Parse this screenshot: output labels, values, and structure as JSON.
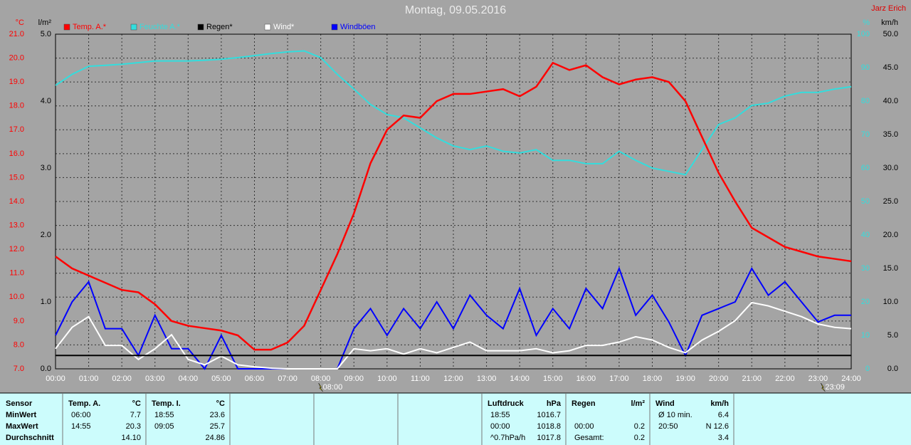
{
  "chart_data": {
    "type": "line",
    "title": "Montag, 09.05.2016",
    "author": "Jarz Erich",
    "x": [
      0,
      0.5,
      1,
      1.5,
      2,
      2.5,
      3,
      3.5,
      4,
      4.5,
      5,
      5.5,
      6,
      6.5,
      7,
      7.5,
      8,
      8.5,
      9,
      9.5,
      10,
      10.5,
      11,
      11.5,
      12,
      12.5,
      13,
      13.5,
      14,
      14.5,
      15,
      15.5,
      16,
      16.5,
      17,
      17.5,
      18,
      18.5,
      19,
      19.5,
      20,
      20.5,
      21,
      21.5,
      22,
      22.5,
      23,
      23.5,
      24
    ],
    "xlim": [
      0,
      24
    ],
    "xticks": [
      {
        "value": 0,
        "label": "00:00"
      },
      {
        "value": 1,
        "label": "01:00"
      },
      {
        "value": 2,
        "label": "02:00"
      },
      {
        "value": 3,
        "label": "03:00"
      },
      {
        "value": 4,
        "label": "04:00"
      },
      {
        "value": 5,
        "label": "05:00"
      },
      {
        "value": 6,
        "label": "06:00"
      },
      {
        "value": 7,
        "label": "07:00"
      },
      {
        "value": 8,
        "label": "08:00"
      },
      {
        "value": 9,
        "label": "09:00"
      },
      {
        "value": 10,
        "label": "10:00"
      },
      {
        "value": 11,
        "label": "11:00"
      },
      {
        "value": 12,
        "label": "12:00"
      },
      {
        "value": 13,
        "label": "13:00"
      },
      {
        "value": 14,
        "label": "14:00"
      },
      {
        "value": 15,
        "label": "15:00"
      },
      {
        "value": 16,
        "label": "16:00"
      },
      {
        "value": 17,
        "label": "17:00"
      },
      {
        "value": 18,
        "label": "18:00"
      },
      {
        "value": 19,
        "label": "19:00"
      },
      {
        "value": 20,
        "label": "20:00"
      },
      {
        "value": 21,
        "label": "21:00"
      },
      {
        "value": 22,
        "label": "22:00"
      },
      {
        "value": 23,
        "label": "23:00"
      },
      {
        "value": 24,
        "label": "24:00"
      }
    ],
    "ylabel": "°C",
    "ylim": [
      7,
      21
    ],
    "yticks": [
      {
        "value": 7,
        "label": "7.0"
      },
      {
        "value": 8,
        "label": "8.0"
      },
      {
        "value": 9,
        "label": "9.0"
      },
      {
        "value": 10,
        "label": "10.0"
      },
      {
        "value": 11,
        "label": "11.0"
      },
      {
        "value": 12,
        "label": "12.0"
      },
      {
        "value": 13,
        "label": "13.0"
      },
      {
        "value": 14,
        "label": "14.0"
      },
      {
        "value": 15,
        "label": "15.0"
      },
      {
        "value": 16,
        "label": "16.0"
      },
      {
        "value": 17,
        "label": "17.0"
      },
      {
        "value": 18,
        "label": "18.0"
      },
      {
        "value": 19,
        "label": "19.0"
      },
      {
        "value": 20,
        "label": "20.0"
      },
      {
        "value": 21,
        "label": "21.0"
      }
    ],
    "y3label": "l/m²",
    "y3lim": [
      0,
      5
    ],
    "y3ticks": [
      {
        "value": 0,
        "label": "0.0"
      },
      {
        "value": 1,
        "label": "1.0"
      },
      {
        "value": 2,
        "label": "2.0"
      },
      {
        "value": 3,
        "label": "3.0"
      },
      {
        "value": 4,
        "label": "4.0"
      },
      {
        "value": 5,
        "label": "5.0"
      }
    ],
    "y2label": "%",
    "y2lim": [
      0,
      100
    ],
    "y2ticks": [
      0,
      10,
      20,
      30,
      40,
      50,
      60,
      70,
      80,
      90,
      100
    ],
    "y4label": "km/h",
    "y4lim": [
      0,
      50
    ],
    "y4ticks": [
      {
        "value": 0,
        "label": "0.0"
      },
      {
        "value": 5,
        "label": "5.0"
      },
      {
        "value": 10,
        "label": "10.0"
      },
      {
        "value": 15,
        "label": "15.0"
      },
      {
        "value": 20,
        "label": "20.0"
      },
      {
        "value": 25,
        "label": "25.0"
      },
      {
        "value": 30,
        "label": "30.0"
      },
      {
        "value": 35,
        "label": "35.0"
      },
      {
        "value": 40,
        "label": "40.0"
      },
      {
        "value": 45,
        "label": "45.0"
      },
      {
        "value": 50,
        "label": "50.0"
      }
    ],
    "axis_colors": {
      "y": "#ff0000",
      "y3": "#000000",
      "y2": "#33dddd",
      "y4": "#000000"
    },
    "grid": true,
    "series": [
      {
        "name": "Temp. A.*",
        "color": "#ff0000",
        "axis": "y",
        "values": [
          11.7,
          11.2,
          10.9,
          10.6,
          10.3,
          10.2,
          9.7,
          9.0,
          8.8,
          8.7,
          8.6,
          8.4,
          7.8,
          7.8,
          8.1,
          8.8,
          10.3,
          11.8,
          13.5,
          15.6,
          17.0,
          17.6,
          17.5,
          18.2,
          18.5,
          18.5,
          18.6,
          18.7,
          18.4,
          18.8,
          19.8,
          19.5,
          19.7,
          19.2,
          18.9,
          19.1,
          19.2,
          19.0,
          18.2,
          16.7,
          15.2,
          14.0,
          12.9,
          12.5,
          12.1,
          11.9,
          11.7,
          11.6,
          11.5
        ]
      },
      {
        "name": "Feuchte A.*",
        "color": "#33dddd",
        "axis": "y2",
        "values": [
          84.7,
          88,
          90.4,
          90.7,
          91,
          91.5,
          92,
          92,
          92,
          92.2,
          92.5,
          93,
          93.6,
          94.2,
          94.7,
          95,
          93,
          88,
          83.6,
          79,
          76,
          75,
          72,
          69,
          66.6,
          65.5,
          66.6,
          65,
          64.5,
          65.5,
          62.3,
          62.3,
          61.3,
          61.3,
          65,
          62.3,
          60,
          59,
          58,
          65.5,
          73,
          75,
          78.7,
          79.4,
          81.5,
          82.6,
          82.6,
          83.6,
          84.3
        ]
      },
      {
        "name": "Regen*",
        "color": "#000000",
        "axis": "y3",
        "values": [
          0.2,
          0.2,
          0.2,
          0.2,
          0.2,
          0.2,
          0.2,
          0.2,
          0.2,
          0.2,
          0.2,
          0.2,
          0.2,
          0.2,
          0.2,
          0.2,
          0.2,
          0.2,
          0.2,
          0.2,
          0.2,
          0.2,
          0.2,
          0.2,
          0.2,
          0.2,
          0.2,
          0.2,
          0.2,
          0.2,
          0.2,
          0.2,
          0.2,
          0.2,
          0.2,
          0.2,
          0.2,
          0.2,
          0.2,
          0.2,
          0.2,
          0.2,
          0.2,
          0.2,
          0.2,
          0.2,
          0.2,
          0.2,
          0.2
        ]
      },
      {
        "name": "Wind*",
        "color": "#ffffff",
        "axis": "y4",
        "values": [
          3,
          6.2,
          7.8,
          3.5,
          3.5,
          1.4,
          3,
          5.1,
          1.4,
          0.6,
          1.9,
          0.6,
          0.3,
          0.1,
          0,
          0,
          0,
          0,
          3,
          2.7,
          3,
          2.2,
          3,
          2.4,
          3.2,
          4,
          2.7,
          2.7,
          2.7,
          3,
          2.4,
          2.7,
          3.5,
          3.5,
          4,
          4.8,
          4.3,
          3.2,
          2.4,
          4.3,
          5.6,
          7.2,
          9.9,
          9.4,
          8.6,
          7.8,
          6.7,
          6.2,
          6
        ]
      },
      {
        "name": "Windböen",
        "color": "#0000ff",
        "axis": "y4",
        "values": [
          5,
          10,
          13,
          6,
          6,
          2,
          8,
          3,
          3,
          0,
          5,
          0,
          0,
          0,
          0,
          0,
          0,
          0,
          6,
          9,
          5,
          9,
          6,
          10,
          6,
          11,
          8,
          6,
          12,
          5,
          9,
          6,
          12,
          9,
          15,
          8,
          11,
          7,
          2,
          8,
          9,
          10,
          15,
          11,
          13,
          10,
          7,
          8,
          8
        ]
      }
    ],
    "annotations": [
      {
        "x": 8,
        "label": "08:00"
      },
      {
        "x": 23.15,
        "label": "23:09"
      }
    ]
  },
  "table": {
    "columns": [
      {
        "rows": [
          {
            "left": "Sensor"
          },
          {
            "left": "MinWert"
          },
          {
            "left": "MaxWert"
          },
          {
            "left": "Durchschnitt"
          }
        ]
      },
      {
        "rows": [
          {
            "left": "Temp. A.",
            "right": "°C"
          },
          {
            "left": "06:00",
            "right": "7.7"
          },
          {
            "left": "14:55",
            "right": "20.3"
          },
          {
            "right": "14.10"
          }
        ]
      },
      {
        "rows": [
          {
            "left": "Temp. I.",
            "right": "°C"
          },
          {
            "left": "18:55",
            "right": "23.6"
          },
          {
            "left": "09:05",
            "right": "25.7"
          },
          {
            "right": "24.86"
          }
        ]
      },
      {
        "rows": [
          {
            "left": "Luftdruck",
            "right": "hPa"
          },
          {
            "left": "18:55",
            "right": "1016.7"
          },
          {
            "left": "00:00",
            "right": "1018.8"
          },
          {
            "left": "^0.7hPa/h",
            "right": "1017.8"
          }
        ]
      },
      {
        "rows": [
          {
            "left": "Regen",
            "right": "l/m²"
          },
          {},
          {
            "left": "00:00",
            "right": "0.2"
          },
          {
            "left": "Gesamt:",
            "right": "0.2"
          }
        ]
      },
      {
        "rows": [
          {
            "left": "Wind",
            "right": "km/h"
          },
          {
            "left": "Ø 10 min.",
            "right": "6.4"
          },
          {
            "left": "20:50",
            "right": "N 12.6"
          },
          {
            "right": "3.4"
          }
        ]
      }
    ]
  }
}
